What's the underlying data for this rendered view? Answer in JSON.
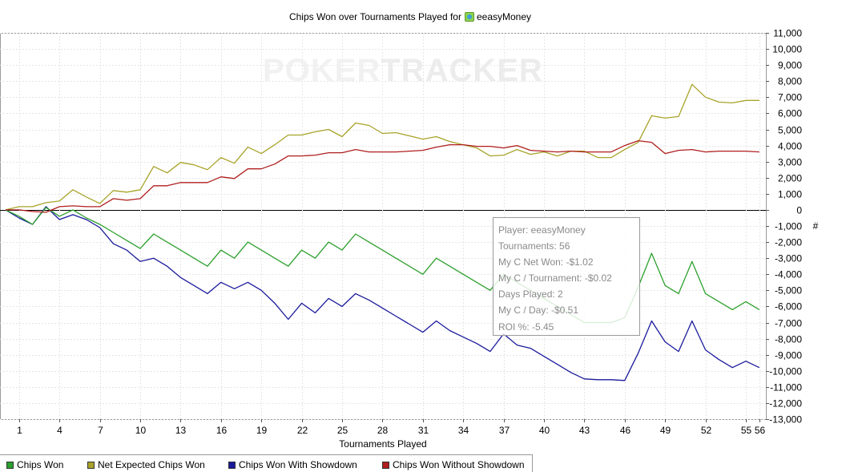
{
  "title": "Chips Won over Tournaments Played for",
  "player": "eeasyMoney",
  "watermark": {
    "part1": "POKER",
    "part2": "TRACKER"
  },
  "tooltip": {
    "player": "Player: eeasyMoney",
    "tournaments": "Tournaments: 56",
    "net_won": "My C Net Won: -$1.02",
    "per_tournament": "My C / Tournament: -$0.02",
    "days_played": "Days Played: 2",
    "per_day": "My C / Day: -$0.51",
    "roi": "ROI %: -5.45"
  },
  "legend": [
    {
      "label": "Chips Won",
      "color": "#2ca02c"
    },
    {
      "label": "Net Expected Chips Won",
      "color": "#a8a32a"
    },
    {
      "label": "Chips Won With Showdown",
      "color": "#1a1a9c"
    },
    {
      "label": "Chips Won Without Showdown",
      "color": "#b01e1e"
    }
  ],
  "chart_data": {
    "type": "line",
    "title": "Chips Won over Tournaments Played for eeasyMoney",
    "xlabel": "Tournaments Played",
    "ylabel": "#",
    "xlim": [
      0,
      56
    ],
    "ylim": [
      -13000,
      11000
    ],
    "x_ticks": [
      1,
      4,
      7,
      10,
      13,
      16,
      19,
      22,
      25,
      28,
      31,
      34,
      37,
      40,
      43,
      46,
      49,
      52,
      55,
      56
    ],
    "y_ticks": [
      11000,
      10000,
      9000,
      8000,
      7000,
      6000,
      5000,
      4000,
      3000,
      2000,
      1000,
      0,
      -1000,
      -2000,
      -3000,
      -4000,
      -5000,
      -6000,
      -7000,
      -8000,
      -9000,
      -10000,
      -11000,
      -12000,
      -13000
    ],
    "y_tick_labels": [
      "11,000",
      "10,000",
      "9,000",
      "8,000",
      "7,000",
      "6,000",
      "5,000",
      "4,000",
      "3,000",
      "2,000",
      "1,000",
      "0",
      "-1,000",
      "-2,000",
      "-3,000",
      "-4,000",
      "-5,000",
      "-6,000",
      "-7,000",
      "-8,000",
      "-9,000",
      "-10,000",
      "-11,000",
      "-12,000",
      "-13,000"
    ],
    "grid": true,
    "legend_position": "bottom-left",
    "x": [
      0,
      1,
      2,
      3,
      4,
      5,
      6,
      7,
      8,
      9,
      10,
      11,
      12,
      13,
      14,
      15,
      16,
      17,
      18,
      19,
      20,
      21,
      22,
      23,
      24,
      25,
      26,
      27,
      28,
      29,
      30,
      31,
      32,
      33,
      34,
      35,
      36,
      37,
      38,
      39,
      40,
      41,
      42,
      43,
      44,
      45,
      46,
      47,
      48,
      49,
      50,
      51,
      52,
      53,
      54,
      55,
      56
    ],
    "series": [
      {
        "name": "Chips Won",
        "color": "#2ca02c",
        "values": [
          0,
          -400,
          -900,
          150,
          -400,
          0,
          -500,
          -900,
          -1400,
          -1900,
          -2400,
          -1500,
          -2000,
          -2500,
          -3000,
          -3500,
          -2500,
          -3000,
          -2000,
          -2500,
          -3000,
          -3500,
          -2500,
          -3000,
          -2000,
          -2500,
          -1500,
          -2000,
          -2500,
          -3000,
          -3500,
          -4000,
          -3000,
          -3500,
          -4000,
          -4500,
          -5000,
          -4000,
          -4500,
          -5000,
          -5500,
          -6000,
          -6500,
          -7000,
          -7000,
          -7000,
          -6700,
          -4800,
          -2700,
          -4700,
          -5200,
          -3200,
          -5200,
          -5700,
          -6200,
          -5700,
          -6200
        ]
      },
      {
        "name": "Net Expected Chips Won",
        "color": "#a8a32a",
        "values": [
          0,
          200,
          200,
          450,
          550,
          1250,
          800,
          400,
          1200,
          1100,
          1250,
          2700,
          2300,
          2950,
          2800,
          2500,
          3250,
          2900,
          3900,
          3500,
          4050,
          4650,
          4650,
          4850,
          5000,
          4550,
          5400,
          5250,
          4750,
          4800,
          4600,
          4400,
          4550,
          4250,
          4050,
          3850,
          3350,
          3400,
          3750,
          3450,
          3600,
          3350,
          3650,
          3650,
          3250,
          3250,
          3750,
          4200,
          5850,
          5700,
          5800,
          7800,
          7000,
          6700,
          6650,
          6800,
          6800
        ]
      },
      {
        "name": "Chips Won With Showdown",
        "color": "#1a1a9c",
        "values": [
          0,
          -500,
          -900,
          200,
          -600,
          -300,
          -600,
          -1100,
          -2100,
          -2500,
          -3200,
          -3000,
          -3500,
          -4200,
          -4700,
          -5200,
          -4500,
          -4900,
          -4500,
          -5000,
          -5800,
          -6800,
          -5800,
          -6400,
          -5500,
          -6000,
          -5200,
          -5600,
          -6100,
          -6600,
          -7100,
          -7600,
          -6900,
          -7500,
          -7900,
          -8300,
          -8800,
          -7700,
          -8400,
          -8600,
          -9100,
          -9600,
          -10100,
          -10500,
          -10550,
          -10550,
          -10600,
          -8900,
          -6900,
          -8200,
          -8800,
          -6900,
          -8700,
          -9300,
          -9800,
          -9400,
          -9800
        ]
      },
      {
        "name": "Chips Won Without Showdown",
        "color": "#b01e1e",
        "values": [
          0,
          0,
          -100,
          -150,
          200,
          250,
          200,
          200,
          700,
          600,
          700,
          1500,
          1500,
          1700,
          1700,
          1700,
          2050,
          1950,
          2550,
          2550,
          2850,
          3350,
          3350,
          3400,
          3550,
          3550,
          3750,
          3600,
          3600,
          3600,
          3650,
          3700,
          3900,
          4050,
          4050,
          3950,
          3950,
          3850,
          4000,
          3700,
          3650,
          3600,
          3650,
          3600,
          3600,
          3600,
          4000,
          4300,
          4200,
          3500,
          3700,
          3750,
          3600,
          3650,
          3650,
          3650,
          3600
        ]
      }
    ]
  }
}
